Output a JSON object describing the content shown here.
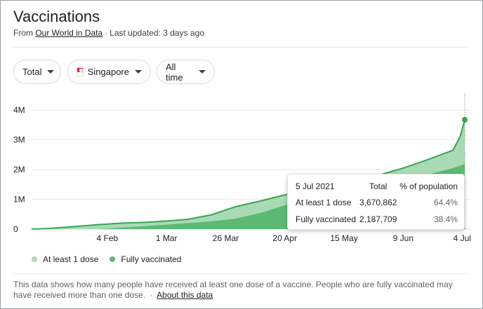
{
  "title": "Vaccinations",
  "source": {
    "prefix": "From",
    "link": "Our World in Data",
    "separator": "·",
    "updated": "Last updated: 3 days ago"
  },
  "filters": {
    "metric": "Total",
    "country": "Singapore",
    "range": "All time"
  },
  "chart_data": {
    "type": "area",
    "title": "",
    "xlabel": "",
    "ylabel": "",
    "ylim": [
      0,
      4000000
    ],
    "y_ticks": [
      {
        "value": 0,
        "label": "0"
      },
      {
        "value": 1000000,
        "label": "1M"
      },
      {
        "value": 2000000,
        "label": "2M"
      },
      {
        "value": 3000000,
        "label": "3M"
      },
      {
        "value": 4000000,
        "label": "4M"
      }
    ],
    "x_ticks": [
      "2021-02-04",
      "2021-03-01",
      "2021-03-26",
      "2021-04-20",
      "2021-05-15",
      "2021-06-09",
      "2021-07-04"
    ],
    "x_tick_labels": [
      "4 Feb",
      "1 Mar",
      "26 Mar",
      "20 Apr",
      "15 May",
      "9 Jun",
      "4 Jul"
    ],
    "x_range": [
      "2021-01-03",
      "2021-07-05"
    ],
    "series": [
      {
        "name": "At least 1 dose",
        "color": "#a8dab5",
        "points": [
          [
            "2021-01-03",
            0
          ],
          [
            "2021-01-10",
            20000
          ],
          [
            "2021-01-20",
            80000
          ],
          [
            "2021-01-31",
            150000
          ],
          [
            "2021-02-10",
            200000
          ],
          [
            "2021-02-20",
            230000
          ],
          [
            "2021-03-01",
            270000
          ],
          [
            "2021-03-10",
            330000
          ],
          [
            "2021-03-20",
            480000
          ],
          [
            "2021-03-30",
            750000
          ],
          [
            "2021-04-10",
            950000
          ],
          [
            "2021-04-20",
            1150000
          ],
          [
            "2021-04-30",
            1300000
          ],
          [
            "2021-05-10",
            1450000
          ],
          [
            "2021-05-20",
            1650000
          ],
          [
            "2021-05-30",
            1820000
          ],
          [
            "2021-06-09",
            2050000
          ],
          [
            "2021-06-20",
            2350000
          ],
          [
            "2021-06-30",
            2650000
          ],
          [
            "2021-07-03",
            3100000
          ],
          [
            "2021-07-05",
            3670862
          ]
        ]
      },
      {
        "name": "Fully vaccinated",
        "color": "#5bb974",
        "points": [
          [
            "2021-01-03",
            0
          ],
          [
            "2021-01-31",
            0
          ],
          [
            "2021-02-10",
            50000
          ],
          [
            "2021-02-20",
            100000
          ],
          [
            "2021-03-01",
            150000
          ],
          [
            "2021-03-10",
            200000
          ],
          [
            "2021-03-20",
            260000
          ],
          [
            "2021-03-30",
            350000
          ],
          [
            "2021-04-10",
            550000
          ],
          [
            "2021-04-20",
            800000
          ],
          [
            "2021-04-30",
            1050000
          ],
          [
            "2021-05-10",
            1200000
          ],
          [
            "2021-05-20",
            1300000
          ],
          [
            "2021-05-30",
            1420000
          ],
          [
            "2021-06-09",
            1600000
          ],
          [
            "2021-06-20",
            1850000
          ],
          [
            "2021-06-30",
            2050000
          ],
          [
            "2021-07-05",
            2187709
          ]
        ]
      }
    ],
    "legend_position": "bottom-left",
    "grid": true
  },
  "tooltip": {
    "date": "5 Jul 2021",
    "col_total": "Total",
    "col_percent": "% of population",
    "rows": [
      {
        "label": "At least 1 dose",
        "total": "3,670,862",
        "percent": "64.4%"
      },
      {
        "label": "Fully vaccinated",
        "total": "2,187,709",
        "percent": "38.4%"
      }
    ]
  },
  "legend": [
    {
      "label": "At least 1 dose",
      "color": "#a8dab5"
    },
    {
      "label": "Fully vaccinated",
      "color": "#5bb974"
    }
  ],
  "footnote": {
    "text": "This data shows how many people have received at least one dose of a vaccine. People who are fully vaccinated may have received more than one dose.",
    "separator": "·",
    "link": "About this data"
  }
}
